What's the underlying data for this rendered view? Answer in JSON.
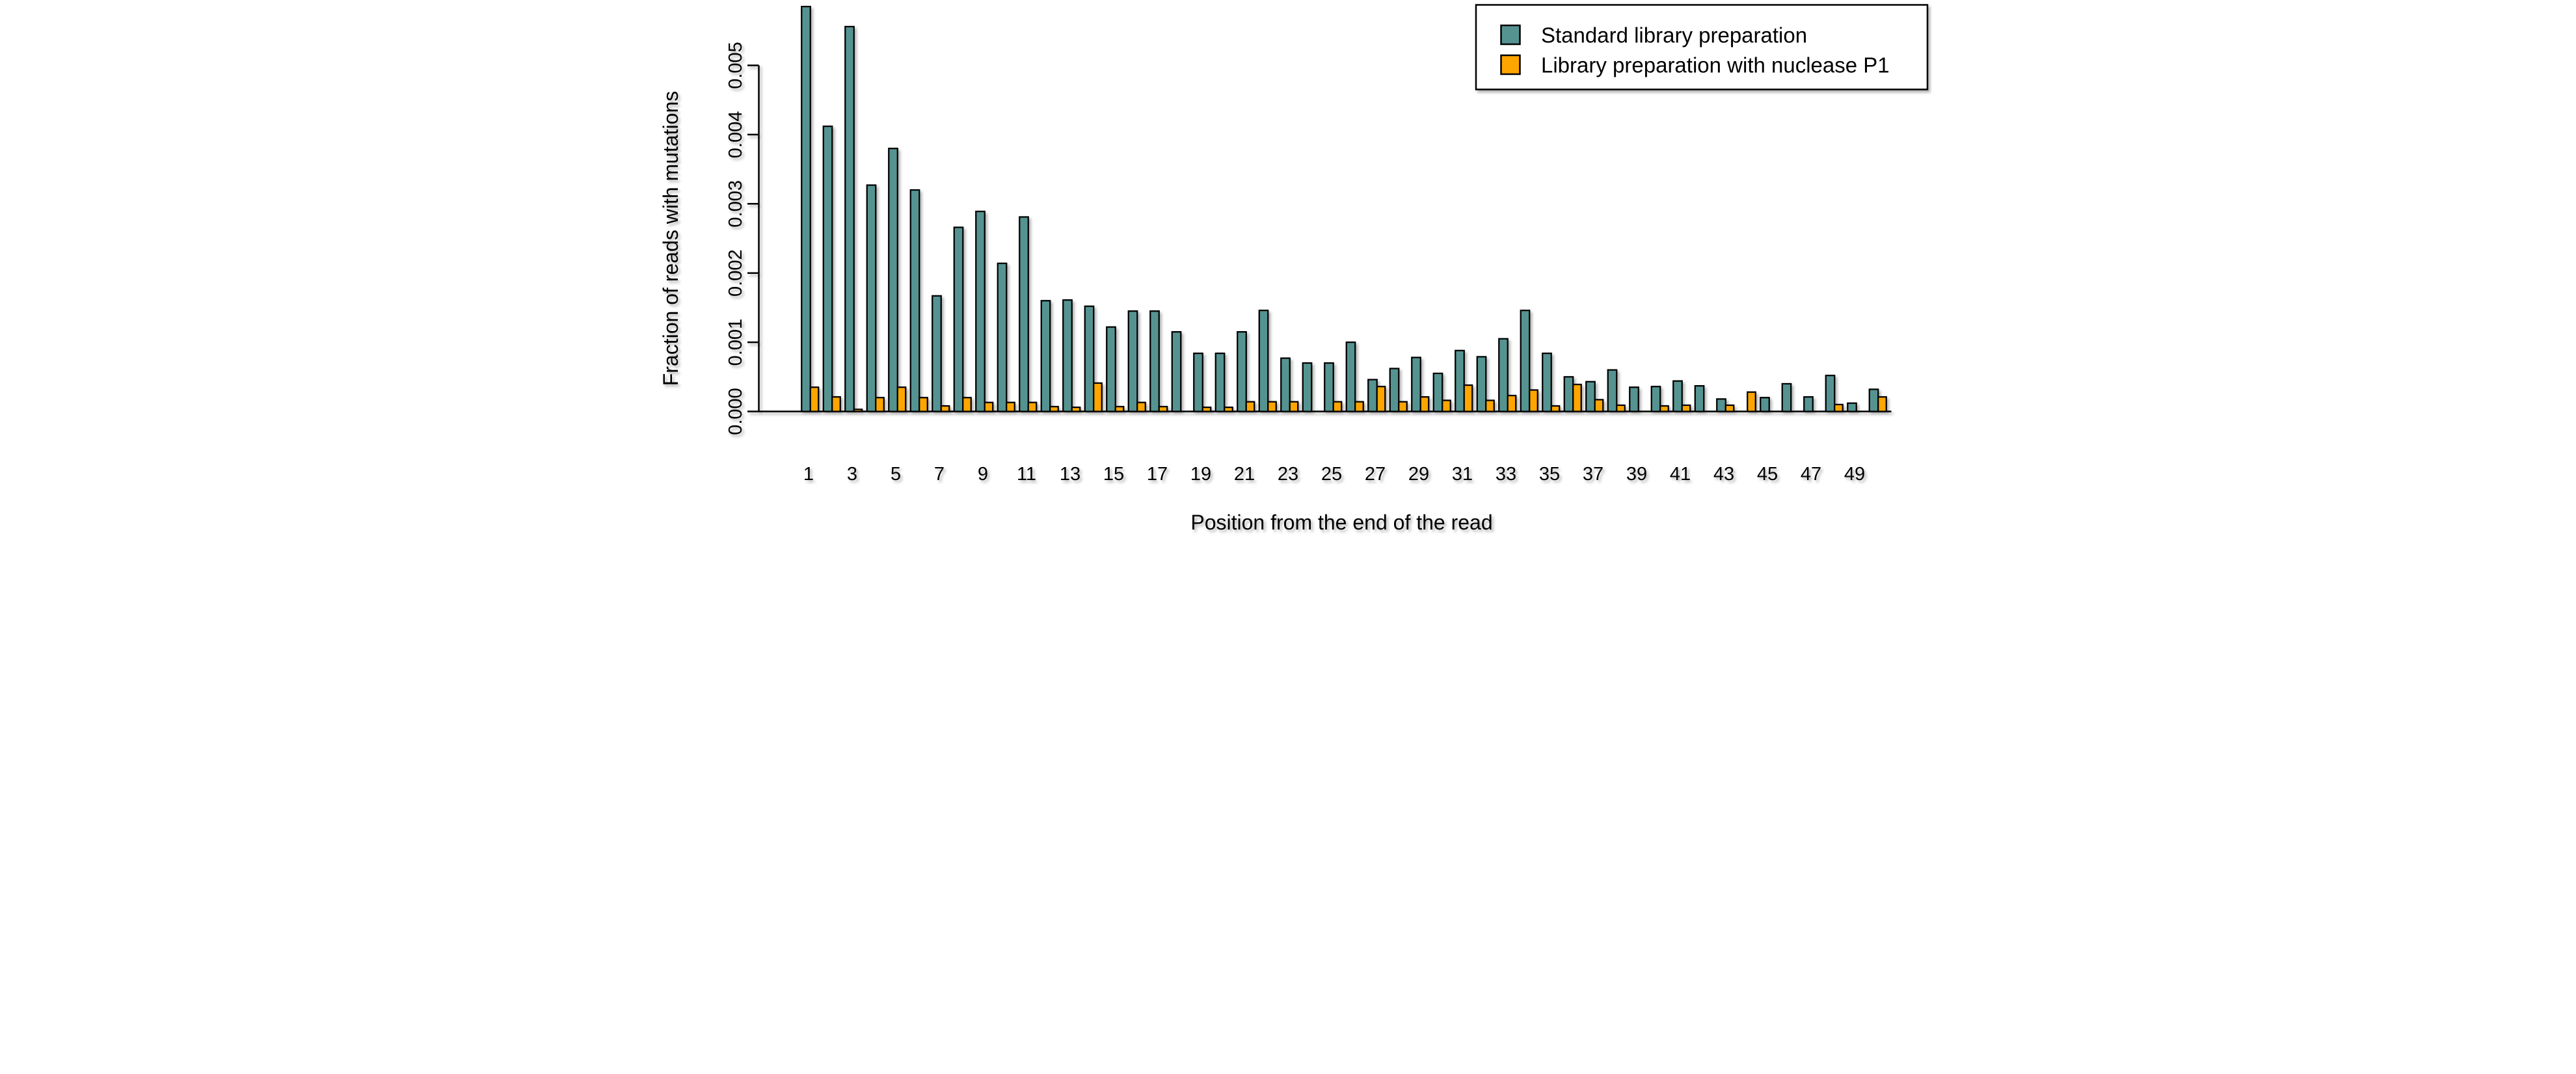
{
  "chart_data": {
    "type": "bar",
    "title": "",
    "xlabel": "Position from the end of the read",
    "ylabel": "Fraction of reads with mutations",
    "x": [
      1,
      2,
      3,
      4,
      5,
      6,
      7,
      8,
      9,
      10,
      11,
      12,
      13,
      14,
      15,
      16,
      17,
      18,
      19,
      20,
      21,
      22,
      23,
      24,
      25,
      26,
      27,
      28,
      29,
      30,
      31,
      32,
      33,
      34,
      35,
      36,
      37,
      38,
      39,
      40,
      41,
      42,
      43,
      44,
      45,
      46,
      47,
      48,
      49,
      50
    ],
    "x_tick_labels": [
      "1",
      "3",
      "5",
      "7",
      "9",
      "11",
      "13",
      "15",
      "17",
      "19",
      "21",
      "23",
      "25",
      "27",
      "29",
      "31",
      "33",
      "35",
      "37",
      "39",
      "41",
      "43",
      "45",
      "47",
      "49"
    ],
    "y_tick_labels": [
      "0.000",
      "0.001",
      "0.002",
      "0.003",
      "0.004",
      "0.005"
    ],
    "y_ticks": [
      0.0,
      0.001,
      0.002,
      0.003,
      0.004,
      0.005
    ],
    "ylim": [
      0,
      0.005
    ],
    "grid": false,
    "legend_position": "top-right",
    "bar_border_color": "#000000",
    "series": [
      {
        "name": "Standard library preparation",
        "color": "#549391",
        "values": [
          0.00585,
          0.00412,
          0.00556,
          0.00327,
          0.0038,
          0.0032,
          0.00167,
          0.00266,
          0.00289,
          0.00214,
          0.00281,
          0.0016,
          0.00161,
          0.00152,
          0.00122,
          0.00145,
          0.00145,
          0.00115,
          0.00084,
          0.00084,
          0.00115,
          0.00146,
          0.00077,
          0.0007,
          0.0007,
          0.001,
          0.00046,
          0.00062,
          0.00078,
          0.00055,
          0.00088,
          0.00079,
          0.00105,
          0.00146,
          0.00084,
          0.0005,
          0.00043,
          0.0006,
          0.00035,
          0.00036,
          0.00044,
          0.00037,
          0.00018,
          1e-05,
          0.0002,
          0.0004,
          0.00021,
          0.00052,
          0.00012,
          0.00032
        ]
      },
      {
        "name": "Library preparation with nuclease P1",
        "color": "#FFA500",
        "values": [
          0.00035,
          0.00021,
          3e-05,
          0.0002,
          0.00035,
          0.0002,
          8e-05,
          0.0002,
          0.00013,
          0.00013,
          0.00013,
          7e-05,
          6e-05,
          0.00041,
          7e-05,
          0.00013,
          7e-05,
          1e-05,
          6e-05,
          6e-05,
          0.00014,
          0.00014,
          0.00014,
          1e-05,
          0.00014,
          0.00014,
          0.00036,
          0.00014,
          0.00021,
          0.00016,
          0.00038,
          0.00016,
          0.00023,
          0.00031,
          8e-05,
          0.00039,
          0.00017,
          9e-05,
          1e-05,
          8e-05,
          9e-05,
          1e-05,
          9e-05,
          0.00028,
          1e-05,
          1e-05,
          1e-05,
          0.0001,
          1e-05,
          0.00021
        ]
      }
    ]
  }
}
